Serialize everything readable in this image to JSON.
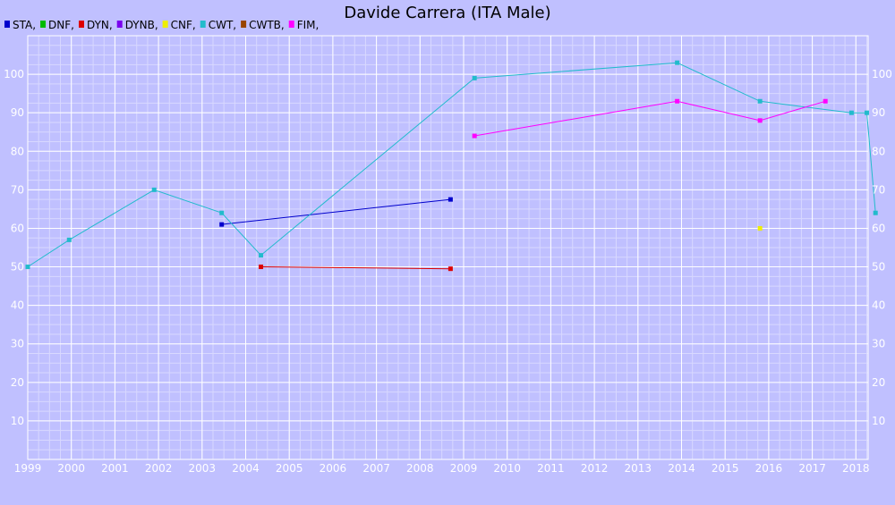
{
  "chart_data": {
    "type": "line",
    "title": "Davide Carrera (ITA Male)",
    "xlim": [
      1999.0,
      2018.45
    ],
    "ylim": [
      0,
      110
    ],
    "x_ticks": [
      "1999",
      "2000",
      "2001",
      "2002",
      "2003",
      "2004",
      "2005",
      "2006",
      "2007",
      "2008",
      "2009",
      "2010",
      "2011",
      "2012",
      "2013",
      "2014",
      "2015",
      "2016",
      "2017",
      "2018"
    ],
    "y_ticks": [
      "10",
      "20",
      "30",
      "40",
      "50",
      "60",
      "70",
      "80",
      "90",
      "100"
    ],
    "grid": true,
    "legend_position": "top-left",
    "colors": {
      "background": "#c0c0ff",
      "plot_background": "#c0c0ff",
      "grid_major": "#ffffff",
      "grid_minor": "#d8d8ff",
      "tick_text": "#ffffff"
    },
    "series": [
      {
        "name": "STA",
        "color": "#0000cc",
        "points": [
          [
            2003.45,
            61
          ],
          [
            2008.7,
            67.5
          ]
        ]
      },
      {
        "name": "DNF",
        "color": "#00bb00",
        "points": []
      },
      {
        "name": "DYN",
        "color": "#dd0000",
        "points": [
          [
            2004.35,
            50
          ],
          [
            2008.7,
            49.5
          ]
        ]
      },
      {
        "name": "DYNB",
        "color": "#7a00ee",
        "points": []
      },
      {
        "name": "CNF",
        "color": "#eeee00",
        "points": [
          [
            2015.8,
            60
          ]
        ]
      },
      {
        "name": "CWT",
        "color": "#22bbcc",
        "points": [
          [
            1999.0,
            50
          ],
          [
            1999.95,
            57
          ],
          [
            2001.9,
            70
          ],
          [
            2003.45,
            64
          ],
          [
            2004.35,
            53
          ],
          [
            2009.25,
            99
          ],
          [
            2013.9,
            103
          ],
          [
            2015.8,
            93
          ],
          [
            2017.9,
            90
          ],
          [
            2018.25,
            90
          ],
          [
            2018.45,
            64
          ]
        ]
      },
      {
        "name": "CWTB",
        "color": "#994400",
        "points": []
      },
      {
        "name": "FIM",
        "color": "#ff00ff",
        "points": [
          [
            2009.25,
            84
          ],
          [
            2013.9,
            93
          ],
          [
            2015.8,
            88
          ],
          [
            2017.3,
            93
          ]
        ]
      }
    ]
  }
}
